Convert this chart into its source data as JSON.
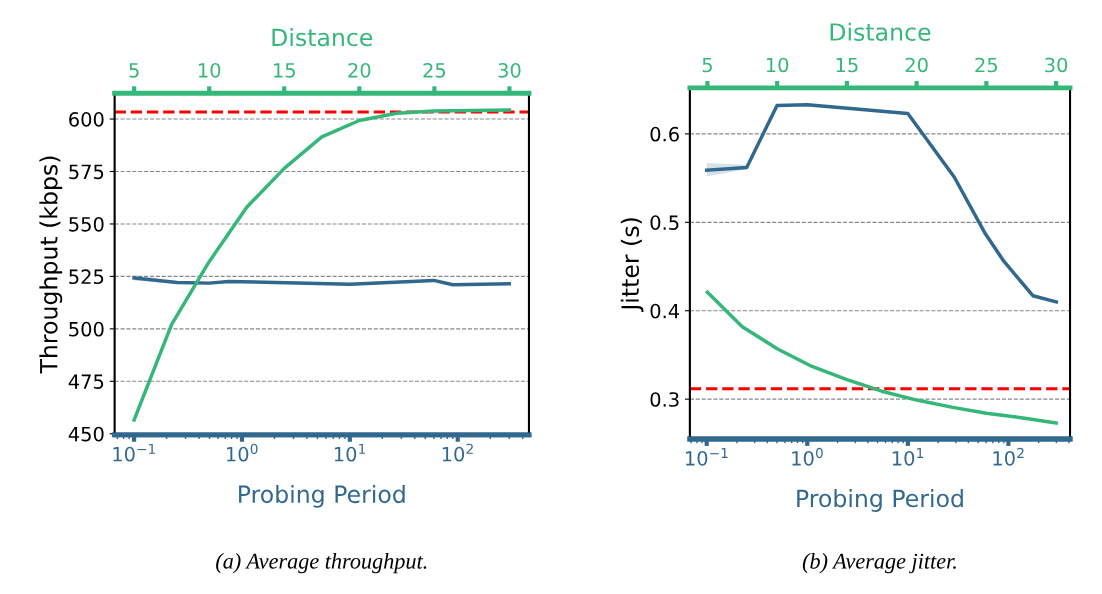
{
  "chart_data": [
    {
      "type": "line",
      "xlabel": "Probing Period",
      "x2label": "Distance",
      "ylabel": "Throughput (kbps)",
      "log": "x",
      "grid": "y",
      "xlim": [
        0.066,
        457
      ],
      "xticks": [
        {
          "value": 0.1,
          "label": "10$^{−1}$"
        },
        {
          "value": 1,
          "label": "10$^{0}$"
        },
        {
          "value": 10,
          "label": "10$^{1}$"
        },
        {
          "value": 100,
          "label": "10$^{2}$"
        }
      ],
      "x2lim": [
        3.7,
        31.3
      ],
      "x2ticks": [
        5,
        10,
        15,
        20,
        25,
        30
      ],
      "ylim": [
        449.5,
        612.3
      ],
      "yticks": [
        450,
        475,
        500,
        525,
        550,
        575,
        600
      ],
      "series": [
        {
          "color": "#31688e",
          "x": [
            0.1,
            0.25,
            0.5,
            0.75,
            10,
            60,
            90,
            300
          ],
          "values": [
            524.3,
            522.1,
            521.8,
            522.6,
            521.3,
            523.1,
            521.0,
            521.5
          ],
          "lower": [
            523.0,
            521.5,
            521.3,
            522.1,
            520.8,
            522.6,
            520.5,
            521.0
          ],
          "upper": [
            525.6,
            522.7,
            522.3,
            523.1,
            521.8,
            523.6,
            521.5,
            522.0
          ]
        },
        {
          "color": "#35b779",
          "axis": "x2",
          "x": [
            5,
            7.5,
            10,
            12.5,
            15,
            17.5,
            20,
            22.5,
            25,
            27.5,
            30
          ],
          "values": [
            456.6,
            502.1,
            532.0,
            558.0,
            576.5,
            591.5,
            599.3,
            602.8,
            603.8,
            604.1,
            604.3
          ]
        }
      ],
      "ref_lines": [
        {
          "axis": "y",
          "value": 603.4,
          "color": "#ff0000",
          "line_style": "dashed"
        }
      ],
      "annotations": [
        "(a) Average throughput."
      ]
    },
    {
      "type": "line",
      "xlabel": "Probing Period",
      "x2label": "Distance",
      "ylabel": "Jitter (s)",
      "log": "x",
      "grid": "y",
      "xlim": [
        0.068,
        410
      ],
      "xticks": [
        {
          "value": 0.1,
          "label": "10$^{−1}$"
        },
        {
          "value": 1,
          "label": "10$^{0}$"
        },
        {
          "value": 10,
          "label": "10$^{1}$"
        },
        {
          "value": 100,
          "label": "10$^{2}$"
        }
      ],
      "x2lim": [
        3.74,
        31.0
      ],
      "x2ticks": [
        5,
        10,
        15,
        20,
        25,
        30
      ],
      "ylim": [
        0.255,
        0.652
      ],
      "yticks": [
        0.3,
        0.4,
        0.5,
        0.6
      ],
      "series": [
        {
          "color": "#31688e",
          "x": [
            0.1,
            0.25,
            0.5,
            1,
            10,
            29,
            59,
            90,
            175,
            300
          ],
          "values": [
            0.559,
            0.562,
            0.632,
            0.633,
            0.623,
            0.551,
            0.487,
            0.456,
            0.417,
            0.41
          ],
          "lower": [
            0.552,
            0.56,
            0.631,
            0.632,
            0.622,
            0.55,
            0.486,
            0.455,
            0.416,
            0.409
          ],
          "upper": [
            0.567,
            0.565,
            0.633,
            0.634,
            0.624,
            0.552,
            0.488,
            0.457,
            0.418,
            0.411
          ]
        },
        {
          "color": "#35b779",
          "axis": "x2",
          "x": [
            5,
            7.5,
            10,
            12.5,
            15,
            17.5,
            20,
            22.5,
            25,
            27.5,
            30
          ],
          "values": [
            0.421,
            0.382,
            0.357,
            0.337,
            0.322,
            0.309,
            0.299,
            0.291,
            0.284,
            0.279,
            0.273
          ]
        }
      ],
      "ref_lines": [
        {
          "axis": "y",
          "value": 0.3117,
          "color": "#ff0000",
          "line_style": "dashed"
        }
      ],
      "annotations": [
        "(b) Average jitter."
      ]
    }
  ]
}
